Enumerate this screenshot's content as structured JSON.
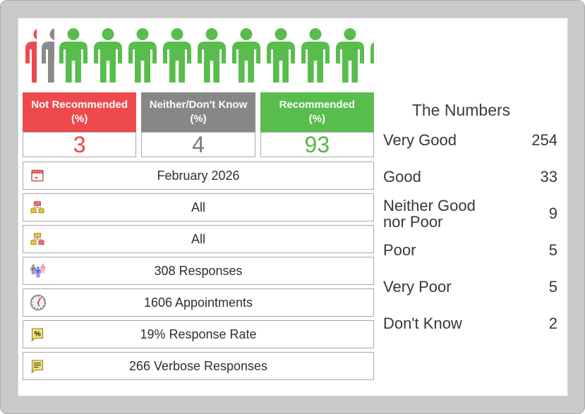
{
  "colors": {
    "not_recommended_red": "#ee4a4e",
    "neither_gray": "#878787",
    "recommended_green": "#58bd4c",
    "frame_gray": "#c9c9c9"
  },
  "pictogram": {
    "description": "people-pictogram",
    "segments": [
      {
        "name": "not-recommended",
        "color": "#ee4a4e",
        "people": 0.42
      },
      {
        "name": "neither-dont-know",
        "color": "#8a8a8a",
        "people": 0.45
      },
      {
        "name": "recommended",
        "color": "#58bd4c",
        "people": 9.16
      }
    ]
  },
  "scores": [
    {
      "label_line1": "Not Recommended",
      "label_line2": "(%)",
      "value": "3",
      "color": "#ee4a4e"
    },
    {
      "label_line1": "Neither/Don't Know",
      "label_line2": "(%)",
      "value": "4",
      "color": "#878787"
    },
    {
      "label_line1": "Recommended",
      "label_line2": "(%)",
      "value": "93",
      "color": "#58bd4c"
    }
  ],
  "info_rows": [
    {
      "icon": "calendar-icon",
      "text": "February 2026"
    },
    {
      "icon": "org-chart-parent-icon",
      "text": "All"
    },
    {
      "icon": "org-chart-child-icon",
      "text": "All"
    },
    {
      "icon": "people-group-icon",
      "text": "308 Responses"
    },
    {
      "icon": "clock-icon",
      "text": "1606 Appointments"
    },
    {
      "icon": "percent-bubble-icon",
      "text": "19% Response Rate"
    },
    {
      "icon": "comment-lines-icon",
      "text": "266 Verbose Responses"
    }
  ],
  "numbers": {
    "title": "The Numbers",
    "items": [
      {
        "label": "Very Good",
        "value": "254"
      },
      {
        "label": "Good",
        "value": "33"
      },
      {
        "label": "Neither Good nor Poor",
        "value": "9"
      },
      {
        "label": "Poor",
        "value": "5"
      },
      {
        "label": "Very Poor",
        "value": "5"
      },
      {
        "label": "Don't Know",
        "value": "2"
      }
    ]
  }
}
